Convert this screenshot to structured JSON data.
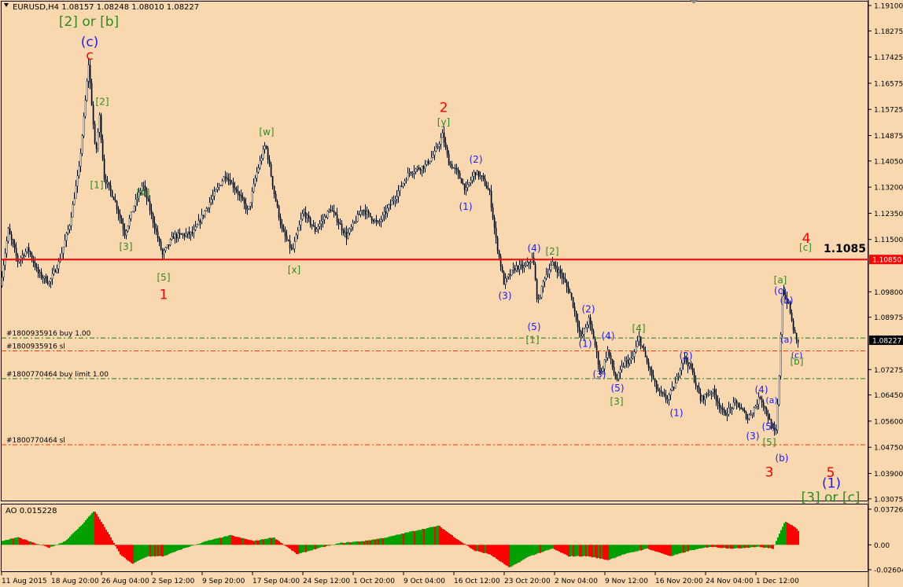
{
  "header": {
    "symbol_line": "EURUSD,H4  1.08157 1.08248 1.08010 1.08227"
  },
  "colors": {
    "background": "#f9d8b0",
    "candle": "#000000",
    "resistance_line": "#ff0000",
    "red_label": "#ff0000",
    "green_label": "#2e8b20",
    "blue_label": "#1a1aff",
    "ao_up": "#00a000",
    "ao_down": "#ff0000",
    "order_line_green": "#1f7a1f",
    "order_line_red": "#ff3300"
  },
  "chart_data": {
    "type": "candlestick",
    "title": "EURUSD,H4  1.08157 1.08248 1.08010 1.08227",
    "ylim": [
      1.0307,
      1.191
    ],
    "y_ticks": [
      "1.19100",
      "1.18275",
      "1.17425",
      "1.16575",
      "1.15725",
      "1.14875",
      "1.14050",
      "1.13200",
      "1.12350",
      "1.11500",
      "1.10850",
      "1.09800",
      "1.08975",
      "1.08227",
      "1.07275",
      "1.06450",
      "1.05600",
      "1.04750",
      "1.03900",
      "1.03075"
    ],
    "x_ticks": [
      "11 Aug 2015",
      "18 Aug 20:00",
      "26 Aug 04:00",
      "2 Sep 12:00",
      "9 Sep 20:00",
      "17 Sep 04:00",
      "24 Sep 12:00",
      "1 Oct 20:00",
      "9 Oct 04:00",
      "16 Oct 12:00",
      "23 Oct 20:00",
      "2 Nov 04:00",
      "9 Nov 12:00",
      "16 Nov 20:00",
      "24 Nov 04:00",
      "1 Dec 12:00"
    ],
    "current_price": "1.08227",
    "resistance": {
      "price": 1.1085,
      "tag": "1.10850",
      "label": "1.1085"
    },
    "price_path": [
      {
        "t": 0,
        "p": 1.1
      },
      {
        "t": 10,
        "p": 1.118
      },
      {
        "t": 22,
        "p": 1.108
      },
      {
        "t": 35,
        "p": 1.112
      },
      {
        "t": 48,
        "p": 1.104
      },
      {
        "t": 62,
        "p": 1.101
      },
      {
        "t": 75,
        "p": 1.108
      },
      {
        "t": 88,
        "p": 1.12
      },
      {
        "t": 100,
        "p": 1.138
      },
      {
        "t": 107,
        "p": 1.157
      },
      {
        "t": 112,
        "p": 1.172
      },
      {
        "t": 117,
        "p": 1.156
      },
      {
        "t": 121,
        "p": 1.142
      },
      {
        "t": 126,
        "p": 1.155
      },
      {
        "t": 132,
        "p": 1.135
      },
      {
        "t": 145,
        "p": 1.128
      },
      {
        "t": 158,
        "p": 1.117
      },
      {
        "t": 170,
        "p": 1.126
      },
      {
        "t": 181,
        "p": 1.133
      },
      {
        "t": 193,
        "p": 1.122
      },
      {
        "t": 206,
        "p": 1.11
      },
      {
        "t": 220,
        "p": 1.116
      },
      {
        "t": 245,
        "p": 1.117
      },
      {
        "t": 268,
        "p": 1.128
      },
      {
        "t": 286,
        "p": 1.136
      },
      {
        "t": 300,
        "p": 1.131
      },
      {
        "t": 315,
        "p": 1.124
      },
      {
        "t": 325,
        "p": 1.136
      },
      {
        "t": 337,
        "p": 1.146
      },
      {
        "t": 348,
        "p": 1.13
      },
      {
        "t": 358,
        "p": 1.118
      },
      {
        "t": 371,
        "p": 1.111
      },
      {
        "t": 385,
        "p": 1.124
      },
      {
        "t": 400,
        "p": 1.118
      },
      {
        "t": 420,
        "p": 1.125
      },
      {
        "t": 440,
        "p": 1.116
      },
      {
        "t": 460,
        "p": 1.125
      },
      {
        "t": 480,
        "p": 1.12
      },
      {
        "t": 500,
        "p": 1.128
      },
      {
        "t": 520,
        "p": 1.137
      },
      {
        "t": 540,
        "p": 1.139
      },
      {
        "t": 552,
        "p": 1.143
      },
      {
        "t": 562,
        "p": 1.149
      },
      {
        "t": 570,
        "p": 1.14
      },
      {
        "t": 580,
        "p": 1.137
      },
      {
        "t": 592,
        "p": 1.131
      },
      {
        "t": 603,
        "p": 1.137
      },
      {
        "t": 612,
        "p": 1.135
      },
      {
        "t": 622,
        "p": 1.13
      },
      {
        "t": 630,
        "p": 1.115
      },
      {
        "t": 640,
        "p": 1.101
      },
      {
        "t": 655,
        "p": 1.106
      },
      {
        "t": 667,
        "p": 1.106
      },
      {
        "t": 677,
        "p": 1.109
      },
      {
        "t": 683,
        "p": 1.094
      },
      {
        "t": 692,
        "p": 1.103
      },
      {
        "t": 702,
        "p": 1.107
      },
      {
        "t": 712,
        "p": 1.104
      },
      {
        "t": 725,
        "p": 1.097
      },
      {
        "t": 738,
        "p": 1.083
      },
      {
        "t": 748,
        "p": 1.089
      },
      {
        "t": 755,
        "p": 1.082
      },
      {
        "t": 763,
        "p": 1.071
      },
      {
        "t": 772,
        "p": 1.079
      },
      {
        "t": 783,
        "p": 1.069
      },
      {
        "t": 793,
        "p": 1.075
      },
      {
        "t": 803,
        "p": 1.076
      },
      {
        "t": 812,
        "p": 1.083
      },
      {
        "t": 822,
        "p": 1.075
      },
      {
        "t": 835,
        "p": 1.066
      },
      {
        "t": 847,
        "p": 1.063
      },
      {
        "t": 858,
        "p": 1.068
      },
      {
        "t": 868,
        "p": 1.077
      },
      {
        "t": 878,
        "p": 1.073
      },
      {
        "t": 890,
        "p": 1.063
      },
      {
        "t": 905,
        "p": 1.066
      },
      {
        "t": 920,
        "p": 1.058
      },
      {
        "t": 935,
        "p": 1.062
      },
      {
        "t": 950,
        "p": 1.057
      },
      {
        "t": 960,
        "p": 1.061
      },
      {
        "t": 966,
        "p": 1.064
      },
      {
        "t": 975,
        "p": 1.058
      },
      {
        "t": 982,
        "p": 1.053
      },
      {
        "t": 986,
        "p": 1.0524
      },
      {
        "t": 990,
        "p": 1.07
      },
      {
        "t": 994,
        "p": 1.099
      },
      {
        "t": 998,
        "p": 1.096
      },
      {
        "t": 1002,
        "p": 1.094
      },
      {
        "t": 1007,
        "p": 1.087
      },
      {
        "t": 1012,
        "p": 1.082
      }
    ],
    "ao_path": [
      {
        "t": 0,
        "v": 0.004
      },
      {
        "t": 20,
        "v": 0.008
      },
      {
        "t": 40,
        "v": 0.002
      },
      {
        "t": 60,
        "v": -0.003
      },
      {
        "t": 80,
        "v": 0.004
      },
      {
        "t": 100,
        "v": 0.02
      },
      {
        "t": 117,
        "v": 0.036
      },
      {
        "t": 135,
        "v": 0.012
      },
      {
        "t": 150,
        "v": -0.01
      },
      {
        "t": 165,
        "v": -0.02
      },
      {
        "t": 185,
        "v": -0.012
      },
      {
        "t": 205,
        "v": -0.012
      },
      {
        "t": 230,
        "v": -0.004
      },
      {
        "t": 260,
        "v": 0.004
      },
      {
        "t": 290,
        "v": 0.01
      },
      {
        "t": 320,
        "v": 0.004
      },
      {
        "t": 345,
        "v": 0.008
      },
      {
        "t": 375,
        "v": -0.01
      },
      {
        "t": 400,
        "v": -0.004
      },
      {
        "t": 430,
        "v": 0.002
      },
      {
        "t": 460,
        "v": 0.004
      },
      {
        "t": 490,
        "v": 0.008
      },
      {
        "t": 520,
        "v": 0.014
      },
      {
        "t": 555,
        "v": 0.02
      },
      {
        "t": 575,
        "v": 0.008
      },
      {
        "t": 600,
        "v": -0.006
      },
      {
        "t": 620,
        "v": -0.01
      },
      {
        "t": 645,
        "v": -0.024
      },
      {
        "t": 670,
        "v": -0.012
      },
      {
        "t": 700,
        "v": -0.004
      },
      {
        "t": 720,
        "v": -0.012
      },
      {
        "t": 745,
        "v": -0.012
      },
      {
        "t": 770,
        "v": -0.016
      },
      {
        "t": 790,
        "v": -0.01
      },
      {
        "t": 820,
        "v": -0.004
      },
      {
        "t": 850,
        "v": -0.012
      },
      {
        "t": 875,
        "v": -0.006
      },
      {
        "t": 900,
        "v": -0.002
      },
      {
        "t": 930,
        "v": -0.004
      },
      {
        "t": 960,
        "v": -0.002
      },
      {
        "t": 980,
        "v": -0.004
      },
      {
        "t": 995,
        "v": 0.025
      },
      {
        "t": 1005,
        "v": 0.02
      },
      {
        "t": 1012,
        "v": 0.015
      }
    ],
    "ao": {
      "label": "AO 0.015228",
      "ylim": [
        -0.02604,
        0.03726
      ],
      "y_ticks": [
        "0.03726",
        "0.00",
        "-0.02604"
      ]
    },
    "order_lines": [
      {
        "label": "#1800935916 buy 1.00",
        "price": 1.083,
        "color": "#1f7a1f"
      },
      {
        "label": "#1800935916 sl",
        "price": 1.0788,
        "color": "#ff3300"
      },
      {
        "label": "#1800770464 buy limit 1.00",
        "price": 1.0698,
        "color": "#1f7a1f"
      },
      {
        "label": "#1800770464 sl",
        "price": 1.0483,
        "color": "#ff3300"
      }
    ],
    "annotations": [
      {
        "text": "[2] or [b]",
        "t": 111,
        "p": 1.1857,
        "color": "green",
        "size": 17
      },
      {
        "text": "(c)",
        "t": 112,
        "p": 1.179,
        "color": "blue",
        "size": 17
      },
      {
        "text": "c",
        "t": 112,
        "p": 1.1747,
        "color": "red",
        "size": 17
      },
      {
        "text": "[2]",
        "t": 128,
        "p": 1.1596,
        "color": "green",
        "size": 12
      },
      {
        "text": "[1]",
        "t": 121,
        "p": 1.1325,
        "color": "green",
        "size": 12
      },
      {
        "text": "[4]",
        "t": 180,
        "p": 1.13,
        "color": "green",
        "size": 12
      },
      {
        "text": "[3]",
        "t": 158,
        "p": 1.1125,
        "color": "green",
        "size": 12
      },
      {
        "text": "[5]",
        "t": 206,
        "p": 1.1025,
        "color": "green",
        "size": 12
      },
      {
        "text": "1",
        "t": 206,
        "p": 1.097,
        "color": "red",
        "size": 17
      },
      {
        "text": "[w]",
        "t": 337,
        "p": 1.1498,
        "color": "green",
        "size": 12
      },
      {
        "text": "[x]",
        "t": 372,
        "p": 1.105,
        "color": "green",
        "size": 12
      },
      {
        "text": "2",
        "t": 562,
        "p": 1.1577,
        "color": "red",
        "size": 17
      },
      {
        "text": "[y]",
        "t": 562,
        "p": 1.153,
        "color": "green",
        "size": 12
      },
      {
        "text": "(2)",
        "t": 603,
        "p": 1.1409,
        "color": "blue",
        "size": 12
      },
      {
        "text": "(1)",
        "t": 590,
        "p": 1.1255,
        "color": "blue",
        "size": 12
      },
      {
        "text": "(4)",
        "t": 677,
        "p": 1.112,
        "color": "blue",
        "size": 12
      },
      {
        "text": "[2]",
        "t": 700,
        "p": 1.111,
        "color": "green",
        "size": 12
      },
      {
        "text": "(3)",
        "t": 640,
        "p": 1.0965,
        "color": "blue",
        "size": 12
      },
      {
        "text": "(5)",
        "t": 677,
        "p": 1.0865,
        "color": "blue",
        "size": 12
      },
      {
        "text": "[1]",
        "t": 675,
        "p": 1.0822,
        "color": "green",
        "size": 12
      },
      {
        "text": "(2)",
        "t": 746,
        "p": 1.0922,
        "color": "blue",
        "size": 12
      },
      {
        "text": "(1)",
        "t": 742,
        "p": 1.081,
        "color": "blue",
        "size": 12
      },
      {
        "text": "(4)",
        "t": 771,
        "p": 1.0835,
        "color": "blue",
        "size": 12
      },
      {
        "text": "[4]",
        "t": 810,
        "p": 1.086,
        "color": "green",
        "size": 12
      },
      {
        "text": "(3)",
        "t": 760,
        "p": 1.071,
        "color": "blue",
        "size": 12
      },
      {
        "text": "(5)",
        "t": 783,
        "p": 1.0665,
        "color": "blue",
        "size": 12
      },
      {
        "text": "[3]",
        "t": 782,
        "p": 1.0622,
        "color": "green",
        "size": 12
      },
      {
        "text": "(2)",
        "t": 870,
        "p": 1.077,
        "color": "blue",
        "size": 12
      },
      {
        "text": "(1)",
        "t": 858,
        "p": 1.0585,
        "color": "blue",
        "size": 12
      },
      {
        "text": "(4)",
        "t": 966,
        "p": 1.066,
        "color": "blue",
        "size": 12
      },
      {
        "text": "(a)",
        "t": 979,
        "p": 1.0626,
        "color": "blue",
        "size": 11
      },
      {
        "text": "(5)",
        "t": 975,
        "p": 1.0541,
        "color": "blue",
        "size": 12
      },
      {
        "text": "(3)",
        "t": 955,
        "p": 1.051,
        "color": "blue",
        "size": 12
      },
      {
        "text": "[5]",
        "t": 976,
        "p": 1.049,
        "color": "green",
        "size": 12
      },
      {
        "text": "3",
        "t": 976,
        "p": 1.0393,
        "color": "red",
        "size": 17
      },
      {
        "text": "(b)",
        "t": 992,
        "p": 1.0439,
        "color": "blue",
        "size": 12
      },
      {
        "text": "[a]",
        "t": 990,
        "p": 1.1017,
        "color": "green",
        "size": 12
      },
      {
        "text": "(c)",
        "t": 990,
        "p": 1.0982,
        "color": "blue",
        "size": 12
      },
      {
        "text": "(b)",
        "t": 998,
        "p": 1.095,
        "color": "blue",
        "size": 12
      },
      {
        "text": "(a)",
        "t": 998,
        "p": 1.0822,
        "color": "blue",
        "size": 11
      },
      {
        "text": "(c)",
        "t": 1011,
        "p": 1.0773,
        "color": "blue",
        "size": 11
      },
      {
        "text": "[b]",
        "t": 1011,
        "p": 1.0752,
        "color": "green",
        "size": 12
      },
      {
        "text": "4",
        "t": 1023,
        "p": 1.1152,
        "color": "red",
        "size": 17
      },
      {
        "text": "[c]",
        "t": 1022,
        "p": 1.1122,
        "color": "green",
        "size": 12
      },
      {
        "text": "5",
        "t": 1054,
        "p": 1.0391,
        "color": "red",
        "size": 17
      },
      {
        "text": "(1)",
        "t": 1055,
        "p": 1.0357,
        "color": "blue",
        "size": 17
      },
      {
        "text": "[3] or [c]",
        "t": 1054,
        "p": 1.0311,
        "color": "green",
        "size": 17
      }
    ]
  }
}
